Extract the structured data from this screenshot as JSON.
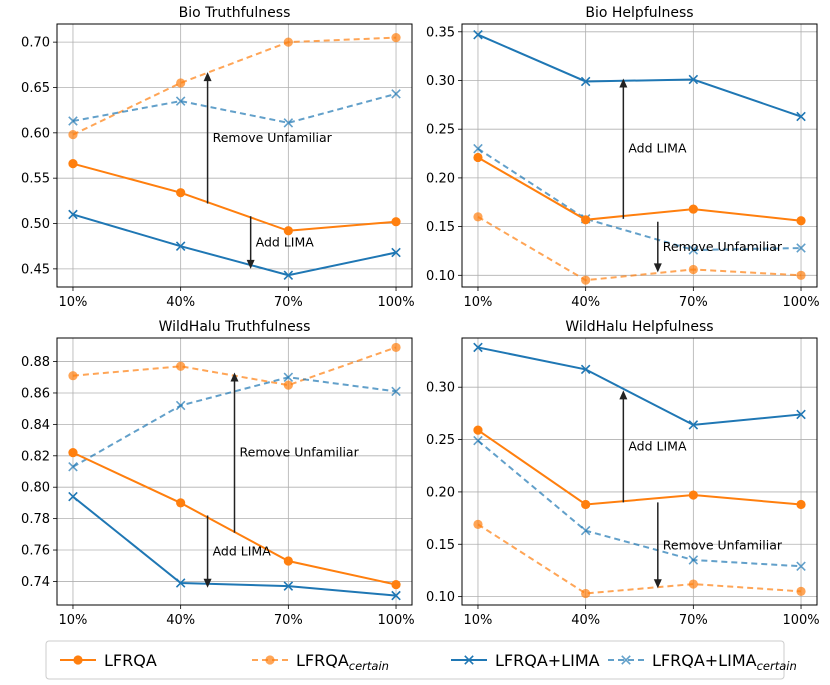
{
  "colors": {
    "orange": "#ff7f0e",
    "blue": "#1f77b4",
    "grid": "#b0b0b0"
  },
  "legend": {
    "entries": [
      {
        "name": "LFRQA",
        "base": "LFRQA",
        "sub": "",
        "series": "lfrqa"
      },
      {
        "name": "LFRQA_certain",
        "base": "LFRQA",
        "sub": "certain",
        "series": "lfrqa_certain"
      },
      {
        "name": "LFRQA+LIMA",
        "base": "LFRQA+LIMA",
        "sub": "",
        "series": "lfrqa_lima"
      },
      {
        "name": "LFRQA+LIMA_certain",
        "base": "LFRQA+LIMA",
        "sub": "certain",
        "series": "lfrqa_lima_certain"
      }
    ]
  },
  "chart_data": [
    {
      "type": "line",
      "title": "Bio Truthfulness",
      "categories": [
        "10%",
        "40%",
        "70%",
        "100%"
      ],
      "ylim": [
        0.43,
        0.72
      ],
      "yticks": [
        0.45,
        0.5,
        0.55,
        0.6,
        0.65,
        0.7
      ],
      "ytick_labels": [
        "0.45",
        "0.50",
        "0.55",
        "0.60",
        "0.65",
        "0.70"
      ],
      "series": [
        {
          "key": "lfrqa",
          "name": "LFRQA",
          "values": [
            0.566,
            0.534,
            0.492,
            0.502
          ]
        },
        {
          "key": "lfrqa_certain",
          "name": "LFRQA_certain",
          "values": [
            0.598,
            0.655,
            0.7,
            0.705
          ]
        },
        {
          "key": "lfrqa_lima",
          "name": "LFRQA+LIMA",
          "values": [
            0.51,
            0.475,
            0.443,
            0.468
          ]
        },
        {
          "key": "lfrqa_lima_certain",
          "name": "LFRQA+LIMA_certain",
          "values": [
            0.613,
            0.635,
            0.611,
            0.643
          ]
        }
      ],
      "annotations": [
        {
          "text": "Remove Unfamiliar",
          "x_pos": 1.25,
          "from": 0.522,
          "to": 0.667
        },
        {
          "text": "Add LIMA",
          "x_pos": 1.65,
          "from": 0.508,
          "to": 0.45
        }
      ]
    },
    {
      "type": "line",
      "title": "Bio Helpfulness",
      "categories": [
        "10%",
        "40%",
        "70%",
        "100%"
      ],
      "ylim": [
        0.088,
        0.358
      ],
      "yticks": [
        0.1,
        0.15,
        0.2,
        0.25,
        0.3,
        0.35
      ],
      "ytick_labels": [
        "0.10",
        "0.15",
        "0.20",
        "0.25",
        "0.30",
        "0.35"
      ],
      "series": [
        {
          "key": "lfrqa",
          "name": "LFRQA",
          "values": [
            0.221,
            0.157,
            0.168,
            0.156
          ]
        },
        {
          "key": "lfrqa_certain",
          "name": "LFRQA_certain",
          "values": [
            0.16,
            0.095,
            0.106,
            0.1
          ]
        },
        {
          "key": "lfrqa_lima",
          "name": "LFRQA+LIMA",
          "values": [
            0.347,
            0.299,
            0.301,
            0.263
          ]
        },
        {
          "key": "lfrqa_lima_certain",
          "name": "LFRQA+LIMA_certain",
          "values": [
            0.23,
            0.158,
            0.126,
            0.128
          ]
        }
      ],
      "annotations": [
        {
          "text": "Add LIMA",
          "x_pos": 1.35,
          "from": 0.158,
          "to": 0.302
        },
        {
          "text": "Remove Unfamiliar",
          "x_pos": 1.67,
          "from": 0.155,
          "to": 0.103
        }
      ]
    },
    {
      "type": "line",
      "title": "WildHalu Truthfulness",
      "categories": [
        "10%",
        "40%",
        "70%",
        "100%"
      ],
      "ylim": [
        0.725,
        0.895
      ],
      "yticks": [
        0.74,
        0.76,
        0.78,
        0.8,
        0.82,
        0.84,
        0.86,
        0.88
      ],
      "ytick_labels": [
        "0.74",
        "0.76",
        "0.78",
        "0.80",
        "0.82",
        "0.84",
        "0.86",
        "0.88"
      ],
      "series": [
        {
          "key": "lfrqa",
          "name": "LFRQA",
          "values": [
            0.822,
            0.79,
            0.753,
            0.738
          ]
        },
        {
          "key": "lfrqa_certain",
          "name": "LFRQA_certain",
          "values": [
            0.871,
            0.877,
            0.865,
            0.889
          ]
        },
        {
          "key": "lfrqa_lima",
          "name": "LFRQA+LIMA",
          "values": [
            0.794,
            0.739,
            0.737,
            0.731
          ]
        },
        {
          "key": "lfrqa_lima_certain",
          "name": "LFRQA+LIMA_certain",
          "values": [
            0.813,
            0.852,
            0.87,
            0.861
          ]
        }
      ],
      "annotations": [
        {
          "text": "Remove Unfamiliar",
          "x_pos": 1.5,
          "from": 0.771,
          "to": 0.873
        },
        {
          "text": "Add LIMA",
          "x_pos": 1.25,
          "from": 0.782,
          "to": 0.736
        }
      ]
    },
    {
      "type": "line",
      "title": "WildHalu Helpfulness",
      "categories": [
        "10%",
        "40%",
        "70%",
        "100%"
      ],
      "ylim": [
        0.092,
        0.347
      ],
      "yticks": [
        0.1,
        0.15,
        0.2,
        0.25,
        0.3
      ],
      "ytick_labels": [
        "0.10",
        "0.15",
        "0.20",
        "0.25",
        "0.30"
      ],
      "series": [
        {
          "key": "lfrqa",
          "name": "LFRQA",
          "values": [
            0.259,
            0.188,
            0.197,
            0.188
          ]
        },
        {
          "key": "lfrqa_certain",
          "name": "LFRQA_certain",
          "values": [
            0.169,
            0.103,
            0.112,
            0.105
          ]
        },
        {
          "key": "lfrqa_lima",
          "name": "LFRQA+LIMA",
          "values": [
            0.338,
            0.317,
            0.264,
            0.274
          ]
        },
        {
          "key": "lfrqa_lima_certain",
          "name": "LFRQA+LIMA_certain",
          "values": [
            0.249,
            0.163,
            0.135,
            0.129
          ]
        }
      ],
      "annotations": [
        {
          "text": "Add LIMA",
          "x_pos": 1.35,
          "from": 0.19,
          "to": 0.297
        },
        {
          "text": "Remove Unfamiliar",
          "x_pos": 1.67,
          "from": 0.19,
          "to": 0.108
        }
      ]
    }
  ]
}
